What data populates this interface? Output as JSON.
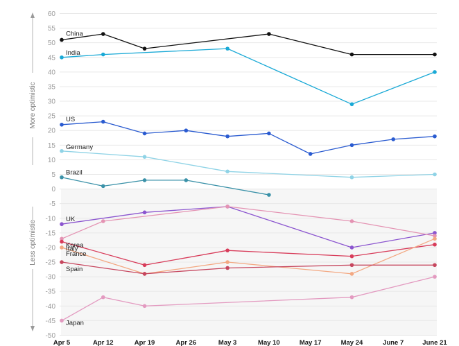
{
  "chart_data": {
    "type": "line",
    "x_categories": [
      "Apr 5",
      "Apr 12",
      "Apr 19",
      "Apr 26",
      "May 3",
      "May 10",
      "May 17",
      "May 24",
      "June 7",
      "June 21"
    ],
    "ylim": [
      -50,
      60
    ],
    "yticks": [
      60,
      55,
      50,
      45,
      40,
      35,
      30,
      25,
      20,
      15,
      10,
      5,
      0,
      -5,
      -10,
      -15,
      -20,
      -25,
      -30,
      -35,
      -40,
      -45,
      -50
    ],
    "y_top_label": "More optimistic",
    "y_bottom_label": "Less optimistic",
    "negative_region_shaded": true,
    "series": [
      {
        "name": "China",
        "color": "#111111",
        "points": [
          [
            0,
            51
          ],
          [
            1,
            53
          ],
          [
            2,
            48
          ],
          [
            5,
            53
          ],
          [
            7,
            46
          ],
          [
            9,
            46
          ]
        ]
      },
      {
        "name": "India",
        "color": "#19a9d6",
        "points": [
          [
            0,
            45
          ],
          [
            1,
            46
          ],
          [
            4,
            48
          ],
          [
            7,
            29
          ],
          [
            9,
            40
          ]
        ]
      },
      {
        "name": "US",
        "color": "#2a5bd0",
        "points": [
          [
            0,
            22
          ],
          [
            1,
            23
          ],
          [
            2,
            19
          ],
          [
            3,
            20
          ],
          [
            4,
            18
          ],
          [
            5,
            19
          ],
          [
            6,
            12
          ],
          [
            7,
            15
          ],
          [
            8,
            17
          ],
          [
            9,
            18
          ]
        ]
      },
      {
        "name": "Germany",
        "color": "#8fd3e6",
        "points": [
          [
            0,
            13
          ],
          [
            2,
            11
          ],
          [
            4,
            6
          ],
          [
            7,
            4
          ],
          [
            9,
            5
          ]
        ]
      },
      {
        "name": "Brazil",
        "color": "#3a91a8",
        "points": [
          [
            0,
            4
          ],
          [
            1,
            1
          ],
          [
            2,
            3
          ],
          [
            3,
            3
          ],
          [
            5,
            -2
          ]
        ]
      },
      {
        "name": "UK",
        "color": "#8b55cf",
        "points": [
          [
            0,
            -12
          ],
          [
            2,
            -8
          ],
          [
            4,
            -6
          ],
          [
            7,
            -20
          ],
          [
            9,
            -15
          ]
        ]
      },
      {
        "name": "Korea",
        "color": "#e493b3",
        "points": [
          [
            0,
            -17
          ],
          [
            1,
            -11
          ],
          [
            4,
            -6
          ],
          [
            7,
            -11
          ],
          [
            9,
            -16
          ]
        ]
      },
      {
        "name": "Italy",
        "color": "#d83c5a",
        "points": [
          [
            0,
            -18
          ],
          [
            2,
            -26
          ],
          [
            4,
            -21
          ],
          [
            7,
            -23
          ],
          [
            9,
            -19
          ]
        ]
      },
      {
        "name": "France",
        "color": "#f3a882",
        "points": [
          [
            0,
            -20
          ],
          [
            2,
            -29
          ],
          [
            4,
            -25
          ],
          [
            7,
            -29
          ],
          [
            9,
            -17
          ]
        ]
      },
      {
        "name": "Spain",
        "color": "#c6465e",
        "points": [
          [
            0,
            -25
          ],
          [
            2,
            -29
          ],
          [
            4,
            -27
          ],
          [
            7,
            -26
          ],
          [
            9,
            -26
          ]
        ]
      },
      {
        "name": "Japan",
        "color": "#e39ac0",
        "points": [
          [
            0,
            -45
          ],
          [
            1,
            -37
          ],
          [
            2,
            -40
          ],
          [
            7,
            -37
          ],
          [
            9,
            -30
          ]
        ]
      }
    ]
  }
}
